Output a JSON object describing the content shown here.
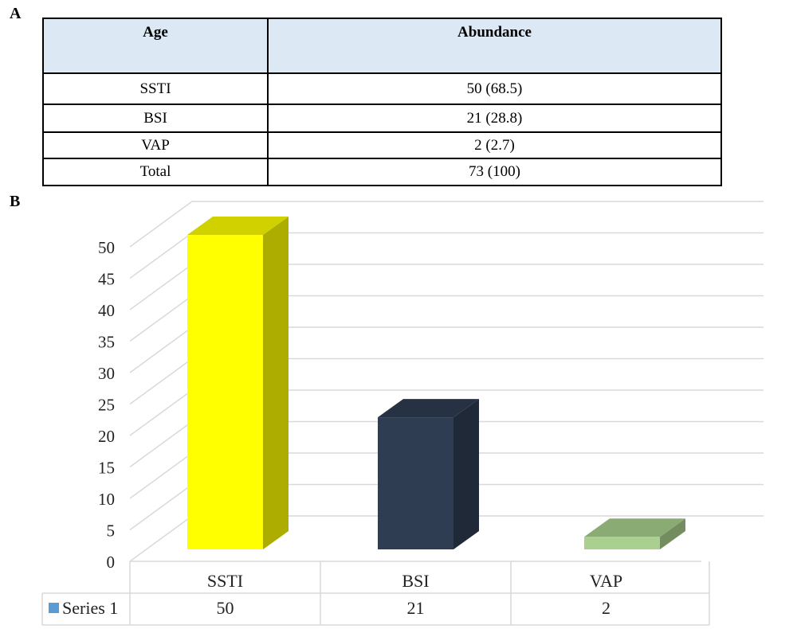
{
  "panels": {
    "a": "A",
    "b": "B"
  },
  "table": {
    "headers": [
      "Age",
      "Abundance"
    ],
    "rows": [
      [
        "SSTI",
        "50 (68.5)"
      ],
      [
        "BSI",
        "21 (28.8)"
      ],
      [
        "VAP",
        "2 (2.7)"
      ],
      [
        "Total",
        "73 (100)"
      ]
    ]
  },
  "chart_data": {
    "type": "bar",
    "style": "3d-column",
    "categories": [
      "SSTI",
      "BSI",
      "VAP"
    ],
    "series": [
      {
        "name": "Series 1",
        "values": [
          50,
          21,
          2
        ]
      }
    ],
    "bar_colors": [
      "#ffff00",
      "#2e3d52",
      "#a9d08e"
    ],
    "legend_color": "#5b9bd5",
    "yticks": [
      0,
      5,
      10,
      15,
      20,
      25,
      30,
      35,
      40,
      45,
      50
    ],
    "ylim": [
      0,
      50
    ],
    "grid": true,
    "data_table": true
  }
}
